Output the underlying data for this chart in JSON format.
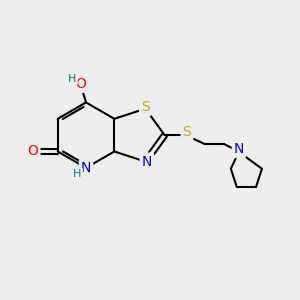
{
  "background_color": "#eeeeee",
  "bond_color": "#000000",
  "atom_colors": {
    "O": "#ff0000",
    "N": "#0000cc",
    "S": "#ccaa00",
    "H": "#008080",
    "C": "#000000"
  },
  "font_size_atoms": 10,
  "font_size_small": 8
}
